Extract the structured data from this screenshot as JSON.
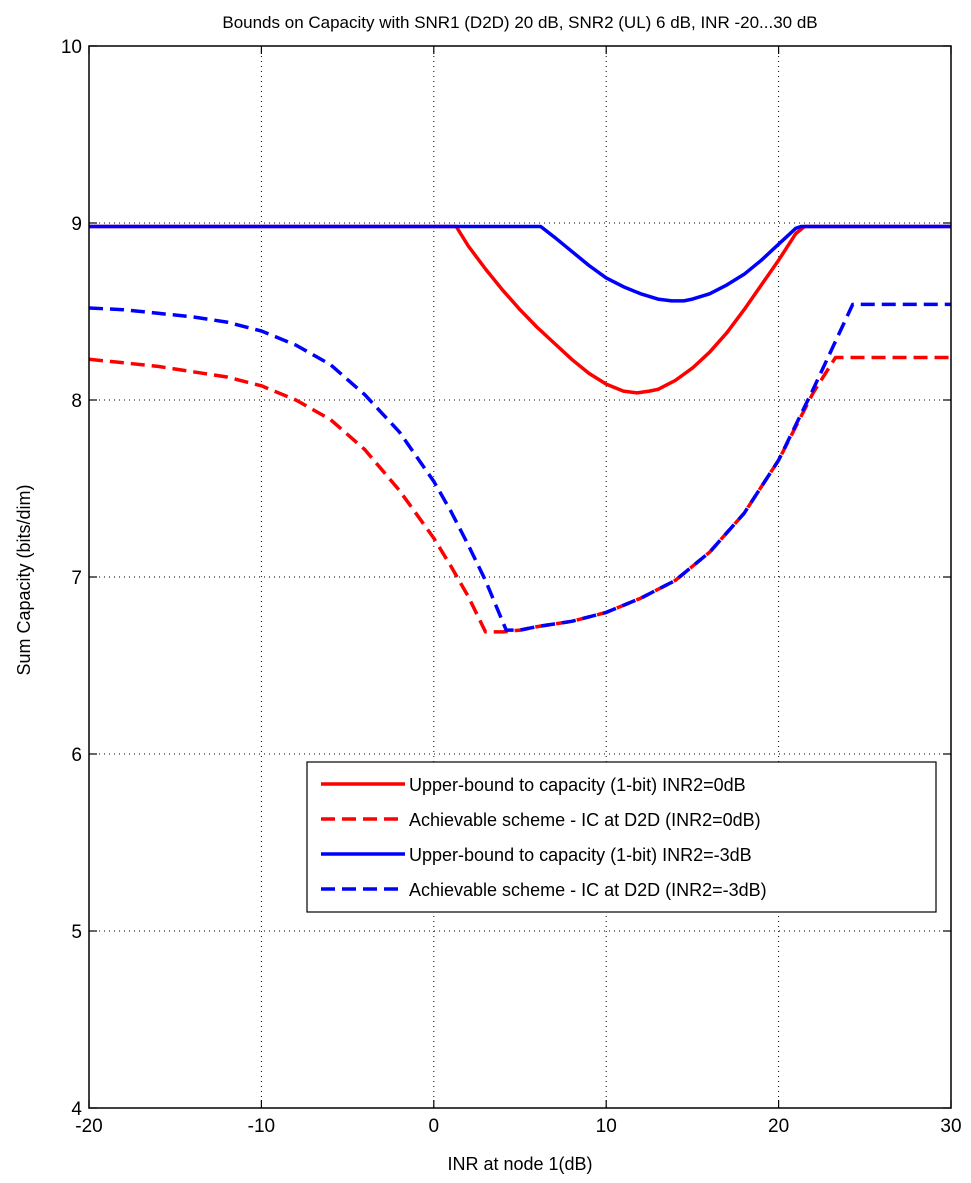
{
  "chart_data": {
    "type": "line",
    "title": "Bounds on Capacity with SNR1 (D2D) 20 dB, SNR2 (UL) 6 dB, INR -20...30 dB",
    "xlabel": "INR at node 1(dB)",
    "ylabel": "Sum Capacity (bits/dim)",
    "xlim": [
      -20,
      30
    ],
    "ylim": [
      4,
      10
    ],
    "xticks": [
      -20,
      -10,
      0,
      10,
      20,
      30
    ],
    "yticks": [
      4,
      5,
      6,
      7,
      8,
      9,
      10
    ],
    "xtick_labels": [
      "-20",
      "-10",
      "0",
      "10",
      "20",
      "30"
    ],
    "ytick_labels": [
      "4",
      "5",
      "6",
      "7",
      "8",
      "9",
      "10"
    ],
    "grid": true,
    "legend_position": "lower-right",
    "series": [
      {
        "name": "Upper-bound to capacity (1-bit) INR2=0dB",
        "color": "#ff0000",
        "style": "solid",
        "x": [
          -20,
          1.3,
          2,
          3,
          4,
          5,
          6,
          7,
          8,
          9,
          10,
          11,
          11.8,
          12.5,
          13,
          14,
          15,
          16,
          17,
          18,
          19,
          20,
          21,
          21.5,
          30
        ],
        "y": [
          8.98,
          8.98,
          8.87,
          8.74,
          8.62,
          8.51,
          8.41,
          8.32,
          8.23,
          8.15,
          8.09,
          8.05,
          8.04,
          8.05,
          8.06,
          8.11,
          8.18,
          8.27,
          8.38,
          8.51,
          8.65,
          8.79,
          8.94,
          8.98,
          8.98
        ]
      },
      {
        "name": "Achievable scheme - IC at D2D (INR2=0dB)",
        "color": "#ff0000",
        "style": "dashed",
        "x": [
          -20,
          -18,
          -16,
          -14,
          -12,
          -10,
          -8,
          -6,
          -4,
          -2,
          0,
          1,
          2,
          3,
          4,
          5,
          6,
          8,
          10,
          12,
          14,
          16,
          18,
          20,
          22,
          23.3,
          30
        ],
        "y": [
          8.23,
          8.21,
          8.19,
          8.16,
          8.13,
          8.08,
          8.0,
          7.89,
          7.72,
          7.49,
          7.22,
          7.06,
          6.89,
          6.69,
          6.69,
          6.7,
          6.72,
          6.75,
          6.8,
          6.88,
          6.98,
          7.14,
          7.36,
          7.66,
          8.04,
          8.24,
          8.24
        ]
      },
      {
        "name": "Upper-bound to capacity (1-bit) INR2=-3dB",
        "color": "#0000ff",
        "style": "solid",
        "x": [
          -20,
          6.2,
          7,
          8,
          9,
          10,
          11,
          12,
          13,
          13.8,
          14.5,
          15,
          16,
          17,
          18,
          19,
          20,
          21,
          21.3,
          30
        ],
        "y": [
          8.98,
          8.98,
          8.92,
          8.84,
          8.76,
          8.69,
          8.64,
          8.6,
          8.57,
          8.56,
          8.56,
          8.57,
          8.6,
          8.65,
          8.71,
          8.79,
          8.88,
          8.97,
          8.98,
          8.98
        ]
      },
      {
        "name": "Achievable scheme - IC at D2D (INR2=-3dB)",
        "color": "#0000ff",
        "style": "dashed",
        "x": [
          -20,
          -18,
          -16,
          -14,
          -12,
          -10,
          -8,
          -6,
          -4,
          -2,
          0,
          1,
          2,
          3,
          4.2,
          5,
          6,
          8,
          10,
          12,
          14,
          16,
          18,
          20,
          22,
          24.3,
          30
        ],
        "y": [
          8.52,
          8.51,
          8.49,
          8.47,
          8.44,
          8.39,
          8.31,
          8.2,
          8.03,
          7.82,
          7.54,
          7.37,
          7.18,
          6.98,
          6.7,
          6.7,
          6.72,
          6.75,
          6.8,
          6.88,
          6.98,
          7.14,
          7.36,
          7.66,
          8.06,
          8.54,
          8.54
        ]
      }
    ]
  }
}
